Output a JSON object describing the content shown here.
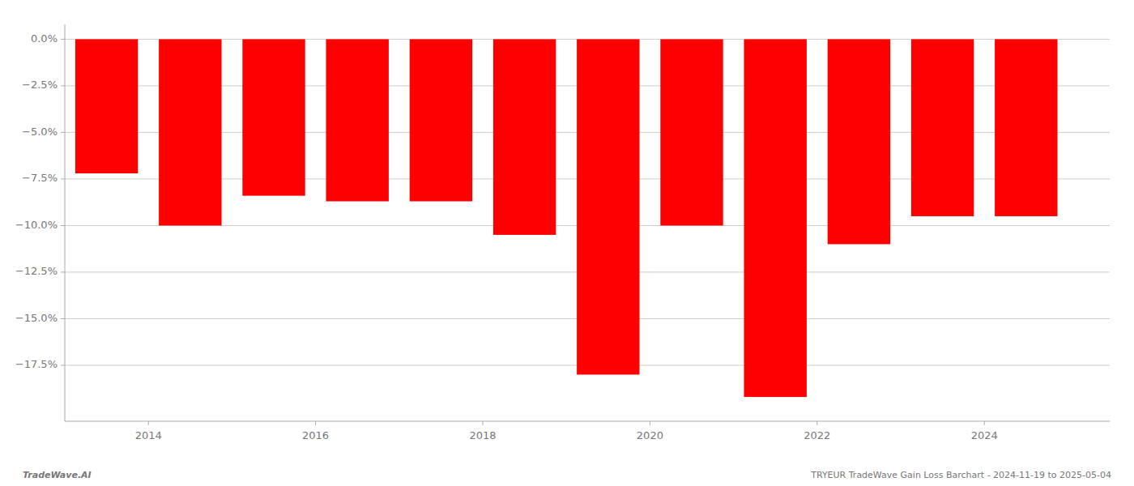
{
  "chart_data": {
    "type": "bar",
    "x": [
      2013.5,
      2014.5,
      2015.5,
      2016.5,
      2017.5,
      2018.5,
      2019.5,
      2020.5,
      2021.5,
      2022.5,
      2023.5,
      2024.5
    ],
    "values": [
      -7.2,
      -10.0,
      -8.4,
      -8.7,
      -8.7,
      -10.5,
      -18.0,
      -10.0,
      -19.2,
      -11.0,
      -9.5,
      -9.5
    ],
    "color": "#ff0000",
    "xlim": [
      2013.0,
      2025.5
    ],
    "xticks": [
      2014,
      2016,
      2018,
      2020,
      2022,
      2024
    ],
    "ylim": [
      -20.5,
      0.8
    ],
    "yticks": [
      {
        "value": 0.0,
        "label": "0.0%"
      },
      {
        "value": -2.5,
        "label": "−2.5%"
      },
      {
        "value": -5.0,
        "label": "−5.0%"
      },
      {
        "value": -7.5,
        "label": "−7.5%"
      },
      {
        "value": -10.0,
        "label": "−10.0%"
      },
      {
        "value": -12.5,
        "label": "−12.5%"
      },
      {
        "value": -15.0,
        "label": "−15.0%"
      },
      {
        "value": -17.5,
        "label": "−17.5%"
      }
    ],
    "grid": true,
    "annotations": [
      "TradeWave.AI",
      "TRYEUR TradeWave Gain Loss Barchart - 2024-11-19 to 2025-05-04"
    ]
  }
}
